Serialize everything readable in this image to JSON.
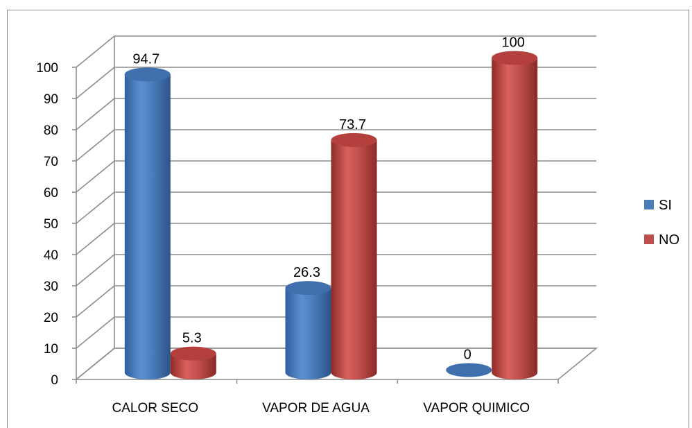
{
  "chart_data": {
    "type": "bar",
    "categories": [
      "CALOR SECO",
      "VAPOR DE AGUA",
      "VAPOR QUIMICO"
    ],
    "series": [
      {
        "name": "SI",
        "values": [
          94.7,
          26.3,
          0
        ],
        "color": "#4a7ebb"
      },
      {
        "name": "NO",
        "values": [
          5.3,
          73.7,
          100
        ],
        "color": "#c0504d"
      }
    ],
    "ylim": [
      0,
      100
    ],
    "yticks": [
      0,
      10,
      20,
      30,
      40,
      50,
      60,
      70,
      80,
      90,
      100
    ],
    "data_labels": [
      [
        "94.7",
        "26.3",
        "0"
      ],
      [
        "5.3",
        "73.7",
        "100"
      ]
    ],
    "grid": true,
    "legend_position": "right",
    "style": "3d-cylinder"
  }
}
